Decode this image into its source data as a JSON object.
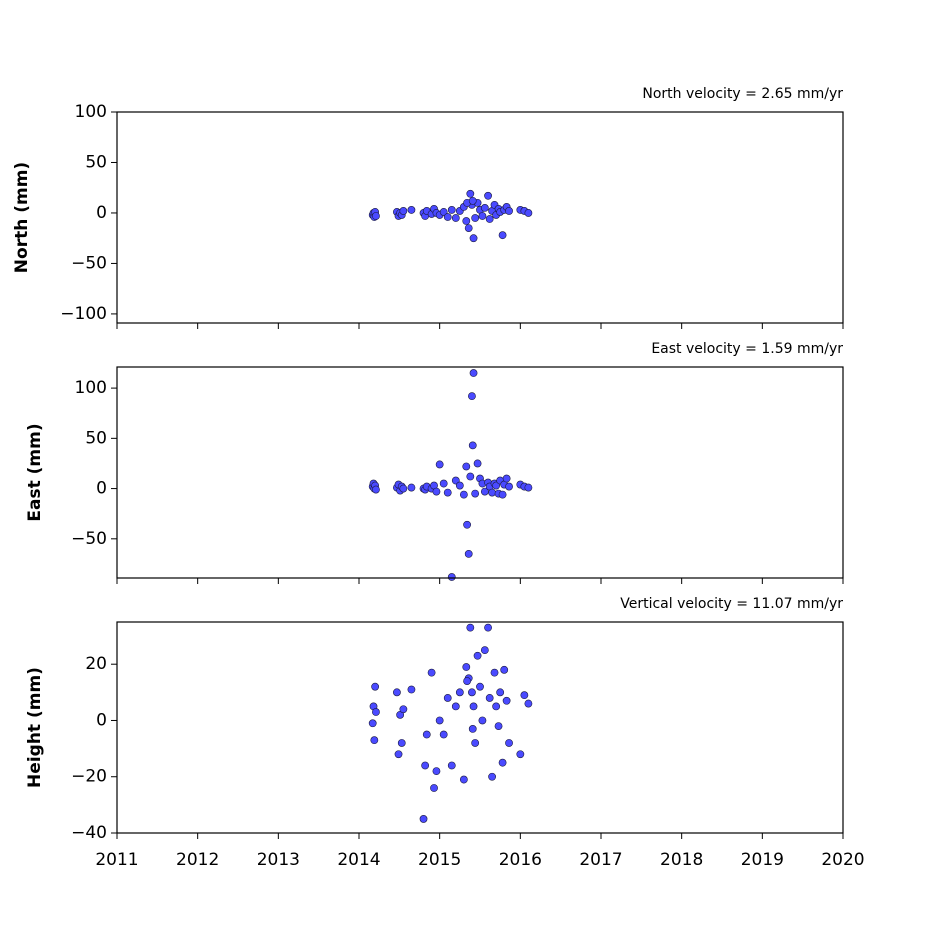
{
  "chart_data": [
    {
      "type": "scatter",
      "ylabel": "North (mm)",
      "annotation": "North velocity = 2.65 mm/yr",
      "color": "#4a4aff",
      "edgecolor": "#1a1a40",
      "xlim": [
        2011,
        2020
      ],
      "xticks": [
        2011,
        2012,
        2013,
        2014,
        2015,
        2016,
        2017,
        2018,
        2019,
        2020
      ],
      "ylim": [
        -109,
        100
      ],
      "yticks": [
        {
          "value": -100,
          "label": "−100"
        },
        {
          "value": -50,
          "label": "−50"
        },
        0,
        50,
        100
      ],
      "x": [
        2014.17,
        2014.18,
        2014.19,
        2014.2,
        2014.21,
        2014.47,
        2014.49,
        2014.51,
        2014.53,
        2014.55,
        2014.65,
        2014.8,
        2014.82,
        2014.84,
        2014.9,
        2014.93,
        2014.96,
        2015.0,
        2015.05,
        2015.1,
        2015.15,
        2015.2,
        2015.25,
        2015.3,
        2015.33,
        2015.36,
        2015.38,
        2015.4,
        2015.42,
        2015.44,
        2015.47,
        2015.5,
        2015.53,
        2015.56,
        2015.6,
        2015.62,
        2015.65,
        2015.68,
        2015.7,
        2015.73,
        2015.75,
        2015.78,
        2015.8,
        2015.83,
        2015.86,
        2016.0,
        2016.05,
        2016.1,
        2015.34,
        2015.41
      ],
      "y": [
        -2,
        0,
        -4,
        1,
        -3,
        1,
        -3,
        0,
        -2,
        2,
        3,
        0,
        -3,
        2,
        -1,
        4,
        0,
        -2,
        1,
        -4,
        3,
        -5,
        2,
        6,
        -8,
        -15,
        19,
        8,
        -25,
        -5,
        10,
        3,
        -3,
        5,
        17,
        -6,
        2,
        8,
        -2,
        4,
        1,
        -22,
        3,
        6,
        2,
        3,
        2,
        0,
        10,
        12
      ]
    },
    {
      "type": "scatter",
      "ylabel": "East (mm)",
      "annotation": "East velocity = 1.59 mm/yr",
      "color": "#4a4aff",
      "edgecolor": "#1a1a40",
      "xlim": [
        2011,
        2020
      ],
      "xticks": [
        2011,
        2012,
        2013,
        2014,
        2015,
        2016,
        2017,
        2018,
        2019,
        2020
      ],
      "ylim": [
        -89,
        121
      ],
      "yticks": [
        {
          "value": -50,
          "label": "−50"
        },
        0,
        50,
        100
      ],
      "x": [
        2014.17,
        2014.18,
        2014.19,
        2014.2,
        2014.21,
        2014.47,
        2014.49,
        2014.51,
        2014.53,
        2014.55,
        2014.65,
        2014.8,
        2014.82,
        2014.84,
        2014.9,
        2014.93,
        2014.96,
        2015.0,
        2015.05,
        2015.1,
        2015.15,
        2015.2,
        2015.25,
        2015.3,
        2015.33,
        2015.36,
        2015.38,
        2015.4,
        2015.42,
        2015.44,
        2015.47,
        2015.5,
        2015.53,
        2015.56,
        2015.6,
        2015.62,
        2015.65,
        2015.68,
        2015.7,
        2015.73,
        2015.75,
        2015.78,
        2015.8,
        2015.83,
        2015.86,
        2016.0,
        2016.05,
        2016.1,
        2015.34,
        2015.41
      ],
      "y": [
        2,
        5,
        0,
        3,
        -1,
        1,
        4,
        -2,
        2,
        0,
        1,
        0,
        -1,
        2,
        0,
        3,
        -3,
        24,
        5,
        -4,
        -88,
        8,
        3,
        -6,
        22,
        -65,
        12,
        92,
        115,
        -5,
        25,
        10,
        5,
        -3,
        6,
        2,
        -4,
        5,
        3,
        -5,
        8,
        -6,
        4,
        10,
        2,
        4,
        2,
        1,
        -36,
        43
      ]
    },
    {
      "type": "scatter",
      "ylabel": "Height (mm)",
      "annotation": "Vertical velocity = 11.07 mm/yr",
      "color": "#4a4aff",
      "edgecolor": "#1a1a40",
      "xlim": [
        2011,
        2020
      ],
      "xticks": [
        2011,
        2012,
        2013,
        2014,
        2015,
        2016,
        2017,
        2018,
        2019,
        2020
      ],
      "ylim": [
        -40,
        35
      ],
      "yticks": [
        {
          "value": -40,
          "label": "−40"
        },
        {
          "value": -20,
          "label": "−20"
        },
        0,
        20
      ],
      "x": [
        2014.17,
        2014.18,
        2014.19,
        2014.2,
        2014.21,
        2014.47,
        2014.49,
        2014.51,
        2014.53,
        2014.55,
        2014.65,
        2014.8,
        2014.82,
        2014.84,
        2014.9,
        2014.93,
        2014.96,
        2015.0,
        2015.05,
        2015.1,
        2015.15,
        2015.2,
        2015.25,
        2015.3,
        2015.33,
        2015.36,
        2015.38,
        2015.4,
        2015.42,
        2015.44,
        2015.47,
        2015.5,
        2015.53,
        2015.56,
        2015.6,
        2015.62,
        2015.65,
        2015.68,
        2015.7,
        2015.73,
        2015.75,
        2015.78,
        2015.8,
        2015.83,
        2015.86,
        2016.0,
        2016.05,
        2016.1,
        2015.34,
        2015.41
      ],
      "y": [
        -1,
        5,
        -7,
        12,
        3,
        10,
        -12,
        2,
        -8,
        4,
        11,
        -35,
        -16,
        -5,
        17,
        -24,
        -18,
        0,
        -5,
        8,
        -16,
        5,
        10,
        -21,
        19,
        15,
        33,
        10,
        5,
        -8,
        23,
        12,
        0,
        25,
        33,
        8,
        -20,
        17,
        5,
        -2,
        10,
        -15,
        18,
        7,
        -8,
        -12,
        9,
        6,
        14,
        -3
      ]
    }
  ]
}
